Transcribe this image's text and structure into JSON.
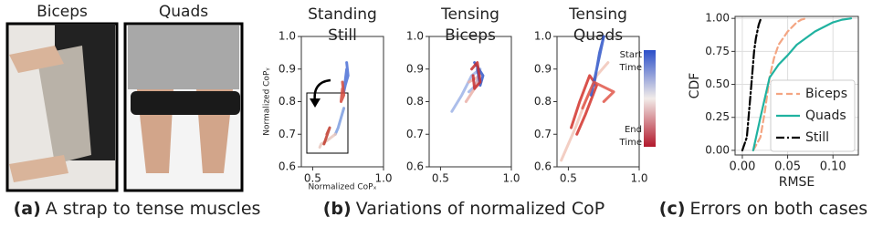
{
  "panels": [
    {
      "photo_label": "Biceps"
    },
    {
      "photo_label": "Quads"
    }
  ],
  "captions": [
    {
      "label": "(a)",
      "text": "A strap to tense muscles"
    },
    {
      "label": "(b)",
      "text": "Variations of normalized CoP"
    },
    {
      "label": "(c)",
      "text": "Errors on both cases"
    }
  ],
  "chart_data": [
    {
      "type": "line",
      "title": [
        "Standing",
        "Still"
      ],
      "xlabel": "Normalized CoPₓ",
      "ylabel": "Normalized CoPᵧ",
      "xlim": [
        0.42,
        1.0
      ],
      "ylim": [
        0.6,
        1.0
      ],
      "xticks": [
        0.5,
        {
          "value": 1,
          "label": "1.0"
        }
      ],
      "yticks": [
        0.6,
        0.7,
        0.8,
        0.9,
        {
          "value": 1,
          "label": "1.0"
        }
      ],
      "series": [
        {
          "color": "#4a6fd6",
          "x": [
            0.74,
            0.75,
            0.73,
            0.72,
            0.74
          ],
          "values": [
            0.92,
            0.88,
            0.85,
            0.83,
            0.9
          ]
        },
        {
          "color": "#d4483b",
          "x": [
            0.71,
            0.72,
            0.7,
            0.71
          ],
          "values": [
            0.86,
            0.82,
            0.8,
            0.84
          ]
        },
        {
          "color": "#7d9de0",
          "x": [
            0.72,
            0.7,
            0.68,
            0.66
          ],
          "values": [
            0.78,
            0.75,
            0.72,
            0.7
          ]
        },
        {
          "color": "#e8c7bd",
          "x": [
            0.66,
            0.63,
            0.6,
            0.56,
            0.55
          ],
          "values": [
            0.7,
            0.69,
            0.68,
            0.67,
            0.66
          ]
        },
        {
          "color": "#c0392b",
          "x": [
            0.6,
            0.62,
            0.58
          ],
          "values": [
            0.7,
            0.72,
            0.67
          ]
        }
      ]
    },
    {
      "type": "line",
      "title": [
        "Tensing",
        "Biceps"
      ],
      "xlim": [
        0.42,
        1.0
      ],
      "ylim": [
        0.6,
        1.0
      ],
      "xticks": [
        0.5,
        {
          "value": 1,
          "label": "1.0"
        }
      ],
      "yticks": [
        0.6,
        0.7,
        0.8,
        0.9,
        {
          "value": 1,
          "label": "1.0"
        }
      ],
      "series": [
        {
          "color": "#9db3e6",
          "x": [
            0.58,
            0.65,
            0.72,
            0.78,
            0.75,
            0.7
          ],
          "values": [
            0.77,
            0.82,
            0.88,
            0.9,
            0.85,
            0.83
          ]
        },
        {
          "color": "#eab0a8",
          "x": [
            0.68,
            0.74,
            0.78,
            0.7
          ],
          "values": [
            0.8,
            0.84,
            0.88,
            0.86
          ]
        },
        {
          "color": "#3357c9",
          "x": [
            0.74,
            0.8,
            0.78,
            0.76
          ],
          "values": [
            0.92,
            0.88,
            0.85,
            0.9
          ]
        },
        {
          "color": "#c62d2d",
          "x": [
            0.72,
            0.76,
            0.78,
            0.74,
            0.73
          ],
          "values": [
            0.9,
            0.92,
            0.86,
            0.84,
            0.88
          ]
        }
      ]
    },
    {
      "type": "line",
      "title": [
        "Tensing",
        "Quads"
      ],
      "xlim": [
        0.42,
        1.0
      ],
      "ylim": [
        0.6,
        1.0
      ],
      "xticks": [
        0.5,
        {
          "value": 1,
          "label": "1.0"
        }
      ],
      "yticks": [
        0.6,
        0.7,
        0.8,
        0.9,
        {
          "value": 1,
          "label": "1.0"
        }
      ],
      "colorbar_labels": [
        [
          "Start",
          "Time"
        ],
        [
          "End",
          "Time"
        ]
      ],
      "series": [
        {
          "color": "#f1c6b8",
          "x": [
            0.45,
            0.55,
            0.62,
            0.7,
            0.78
          ],
          "values": [
            0.62,
            0.72,
            0.8,
            0.88,
            0.92
          ]
        },
        {
          "color": "#d2322b",
          "x": [
            0.52,
            0.58,
            0.65,
            0.7,
            0.62,
            0.56
          ],
          "values": [
            0.72,
            0.8,
            0.88,
            0.85,
            0.76,
            0.7
          ]
        },
        {
          "color": "#2f55c8",
          "x": [
            0.68,
            0.72,
            0.75,
            0.7,
            0.66
          ],
          "values": [
            0.85,
            0.95,
            1.0,
            0.9,
            0.82
          ]
        },
        {
          "color": "#e0574a",
          "x": [
            0.6,
            0.68,
            0.82,
            0.75
          ],
          "values": [
            0.78,
            0.86,
            0.83,
            0.8
          ]
        }
      ]
    },
    {
      "type": "cdf",
      "xlabel": "RMSE",
      "ylabel": "CDF",
      "xlim": [
        -0.008,
        0.128
      ],
      "ylim": [
        -0.035,
        1.015
      ],
      "xticks": [
        {
          "value": 0,
          "label": "0.00"
        },
        0.05,
        {
          "value": 0.1,
          "label": "0.10"
        }
      ],
      "yticks": [
        {
          "value": 0,
          "label": "0.00"
        },
        0.25,
        {
          "value": 0.5,
          "label": "0.50"
        },
        0.75,
        {
          "value": 1,
          "label": "1.00"
        }
      ],
      "grid": true,
      "legend": "lower right",
      "series": [
        {
          "name": "Biceps",
          "color": "#f4a582",
          "dash": "dashed",
          "x": [
            0.012,
            0.02,
            0.025,
            0.03,
            0.035,
            0.04,
            0.05,
            0.06,
            0.065,
            0.07
          ],
          "values": [
            0,
            0.1,
            0.3,
            0.55,
            0.7,
            0.8,
            0.9,
            0.97,
            0.99,
            1
          ]
        },
        {
          "name": "Quads",
          "color": "#20b2a0",
          "dash": "solid",
          "x": [
            0.012,
            0.02,
            0.03,
            0.04,
            0.05,
            0.06,
            0.07,
            0.08,
            0.1,
            0.11,
            0.12
          ],
          "values": [
            0,
            0.25,
            0.55,
            0.65,
            0.72,
            0.8,
            0.85,
            0.9,
            0.97,
            0.99,
            1
          ]
        },
        {
          "name": "Still",
          "color": "#000000",
          "dash": "dashdot",
          "x": [
            0,
            0.005,
            0.01,
            0.013,
            0.015,
            0.018,
            0.02,
            0.022
          ],
          "values": [
            0,
            0.1,
            0.5,
            0.75,
            0.85,
            0.95,
            0.99,
            1
          ]
        }
      ]
    }
  ]
}
